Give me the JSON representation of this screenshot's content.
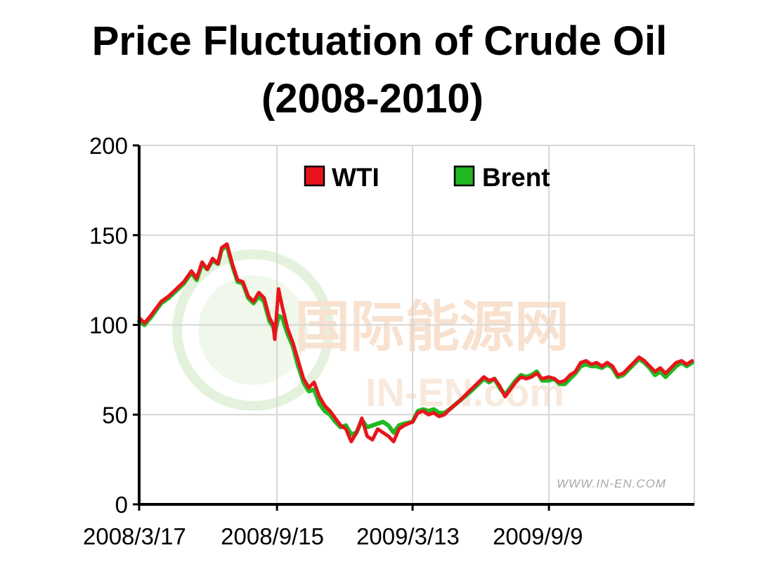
{
  "page": {
    "title_line1": "Price Fluctuation of Crude Oil",
    "title_line2": "(2008-2010)"
  },
  "colors": {
    "wti": "#e8141c",
    "brent": "#22b822",
    "grid": "#d6d6d6",
    "axis": "#000000",
    "watermark": "#f4c9a8",
    "watermark_globe": "#cfe9c2"
  },
  "watermark": {
    "chinese": "国际能源网",
    "latin": "IN-EN.com",
    "url": "WWW.IN-EN.COM"
  },
  "chart_data": {
    "type": "line",
    "title": "",
    "xlabel": "",
    "ylabel": "",
    "ylim": [
      0,
      200
    ],
    "yticks": [
      0,
      50,
      100,
      150,
      200
    ],
    "xlim": [
      "2008-03-17",
      "2010-03-20"
    ],
    "xticks": [
      {
        "date": "2008-03-17",
        "label": "2008/3/17"
      },
      {
        "date": "2008-09-15",
        "label": "2008/9/15"
      },
      {
        "date": "2009-03-13",
        "label": "2009/3/13"
      },
      {
        "date": "2009-09-09",
        "label": "2009/9/9"
      }
    ],
    "grid": true,
    "legend_position": "top-center",
    "series": [
      {
        "name": "WTI",
        "color": "#e8141c",
        "points": [
          [
            "2008-03-17",
            104
          ],
          [
            "2008-03-24",
            101
          ],
          [
            "2008-04-01",
            105
          ],
          [
            "2008-04-15",
            113
          ],
          [
            "2008-04-25",
            116
          ],
          [
            "2008-05-05",
            120
          ],
          [
            "2008-05-15",
            124
          ],
          [
            "2008-05-25",
            130
          ],
          [
            "2008-06-01",
            126
          ],
          [
            "2008-06-08",
            135
          ],
          [
            "2008-06-15",
            131
          ],
          [
            "2008-06-22",
            137
          ],
          [
            "2008-06-29",
            134
          ],
          [
            "2008-07-04",
            143
          ],
          [
            "2008-07-11",
            145
          ],
          [
            "2008-07-18",
            134
          ],
          [
            "2008-07-25",
            125
          ],
          [
            "2008-08-01",
            124
          ],
          [
            "2008-08-08",
            116
          ],
          [
            "2008-08-15",
            113
          ],
          [
            "2008-08-22",
            118
          ],
          [
            "2008-08-29",
            115
          ],
          [
            "2008-09-05",
            104
          ],
          [
            "2008-09-10",
            100
          ],
          [
            "2008-09-12",
            92
          ],
          [
            "2008-09-17",
            120
          ],
          [
            "2008-09-22",
            110
          ],
          [
            "2008-09-29",
            98
          ],
          [
            "2008-10-06",
            90
          ],
          [
            "2008-10-13",
            80
          ],
          [
            "2008-10-20",
            70
          ],
          [
            "2008-10-27",
            65
          ],
          [
            "2008-11-03",
            68
          ],
          [
            "2008-11-10",
            60
          ],
          [
            "2008-11-17",
            55
          ],
          [
            "2008-11-24",
            52
          ],
          [
            "2008-12-01",
            48
          ],
          [
            "2008-12-08",
            44
          ],
          [
            "2008-12-15",
            42
          ],
          [
            "2008-12-22",
            35
          ],
          [
            "2008-12-29",
            40
          ],
          [
            "2009-01-05",
            48
          ],
          [
            "2009-01-12",
            38
          ],
          [
            "2009-01-19",
            36
          ],
          [
            "2009-01-26",
            42
          ],
          [
            "2009-02-02",
            40
          ],
          [
            "2009-02-09",
            38
          ],
          [
            "2009-02-16",
            35
          ],
          [
            "2009-02-23",
            42
          ],
          [
            "2009-03-02",
            44
          ],
          [
            "2009-03-13",
            46
          ],
          [
            "2009-03-20",
            51
          ],
          [
            "2009-03-27",
            52
          ],
          [
            "2009-04-03",
            50
          ],
          [
            "2009-04-10",
            51
          ],
          [
            "2009-04-17",
            49
          ],
          [
            "2009-04-24",
            50
          ],
          [
            "2009-05-01",
            53
          ],
          [
            "2009-05-15",
            58
          ],
          [
            "2009-05-29",
            64
          ],
          [
            "2009-06-08",
            68
          ],
          [
            "2009-06-15",
            71
          ],
          [
            "2009-06-22",
            69
          ],
          [
            "2009-06-29",
            70
          ],
          [
            "2009-07-06",
            66
          ],
          [
            "2009-07-13",
            60
          ],
          [
            "2009-07-20",
            64
          ],
          [
            "2009-07-27",
            68
          ],
          [
            "2009-08-03",
            71
          ],
          [
            "2009-08-10",
            70
          ],
          [
            "2009-08-17",
            71
          ],
          [
            "2009-08-24",
            73
          ],
          [
            "2009-08-31",
            70
          ],
          [
            "2009-09-09",
            71
          ],
          [
            "2009-09-16",
            70
          ],
          [
            "2009-09-23",
            68
          ],
          [
            "2009-09-30",
            69
          ],
          [
            "2009-10-07",
            72
          ],
          [
            "2009-10-14",
            74
          ],
          [
            "2009-10-21",
            79
          ],
          [
            "2009-10-28",
            80
          ],
          [
            "2009-11-04",
            78
          ],
          [
            "2009-11-11",
            79
          ],
          [
            "2009-11-18",
            77
          ],
          [
            "2009-11-25",
            79
          ],
          [
            "2009-12-02",
            77
          ],
          [
            "2009-12-09",
            72
          ],
          [
            "2009-12-16",
            73
          ],
          [
            "2009-12-23",
            76
          ],
          [
            "2009-12-30",
            79
          ],
          [
            "2010-01-06",
            82
          ],
          [
            "2010-01-13",
            80
          ],
          [
            "2010-01-20",
            77
          ],
          [
            "2010-01-27",
            74
          ],
          [
            "2010-02-03",
            76
          ],
          [
            "2010-02-10",
            73
          ],
          [
            "2010-02-17",
            76
          ],
          [
            "2010-02-24",
            79
          ],
          [
            "2010-03-03",
            80
          ],
          [
            "2010-03-10",
            78
          ],
          [
            "2010-03-17",
            80
          ]
        ]
      },
      {
        "name": "Brent",
        "color": "#22b822",
        "points": [
          [
            "2008-03-17",
            102
          ],
          [
            "2008-03-24",
            100
          ],
          [
            "2008-04-01",
            104
          ],
          [
            "2008-04-15",
            112
          ],
          [
            "2008-04-25",
            115
          ],
          [
            "2008-05-05",
            119
          ],
          [
            "2008-05-15",
            123
          ],
          [
            "2008-05-25",
            129
          ],
          [
            "2008-06-01",
            125
          ],
          [
            "2008-06-08",
            134
          ],
          [
            "2008-06-15",
            131
          ],
          [
            "2008-06-22",
            136
          ],
          [
            "2008-06-29",
            134
          ],
          [
            "2008-07-04",
            142
          ],
          [
            "2008-07-11",
            144
          ],
          [
            "2008-07-18",
            133
          ],
          [
            "2008-07-25",
            124
          ],
          [
            "2008-08-01",
            123
          ],
          [
            "2008-08-08",
            115
          ],
          [
            "2008-08-15",
            112
          ],
          [
            "2008-08-22",
            116
          ],
          [
            "2008-08-29",
            113
          ],
          [
            "2008-09-05",
            102
          ],
          [
            "2008-09-10",
            99
          ],
          [
            "2008-09-12",
            95
          ],
          [
            "2008-09-17",
            105
          ],
          [
            "2008-09-22",
            104
          ],
          [
            "2008-09-29",
            95
          ],
          [
            "2008-10-06",
            88
          ],
          [
            "2008-10-13",
            77
          ],
          [
            "2008-10-20",
            68
          ],
          [
            "2008-10-27",
            63
          ],
          [
            "2008-11-03",
            64
          ],
          [
            "2008-11-10",
            56
          ],
          [
            "2008-11-17",
            52
          ],
          [
            "2008-11-24",
            50
          ],
          [
            "2008-12-01",
            46
          ],
          [
            "2008-12-08",
            43
          ],
          [
            "2008-12-15",
            44
          ],
          [
            "2008-12-22",
            39
          ],
          [
            "2008-12-29",
            40
          ],
          [
            "2009-01-05",
            47
          ],
          [
            "2009-01-12",
            43
          ],
          [
            "2009-01-19",
            44
          ],
          [
            "2009-01-26",
            45
          ],
          [
            "2009-02-02",
            46
          ],
          [
            "2009-02-09",
            44
          ],
          [
            "2009-02-16",
            40
          ],
          [
            "2009-02-23",
            44
          ],
          [
            "2009-03-02",
            45
          ],
          [
            "2009-03-13",
            46
          ],
          [
            "2009-03-20",
            52
          ],
          [
            "2009-03-27",
            53
          ],
          [
            "2009-04-03",
            52
          ],
          [
            "2009-04-10",
            53
          ],
          [
            "2009-04-17",
            51
          ],
          [
            "2009-04-24",
            51
          ],
          [
            "2009-05-01",
            53
          ],
          [
            "2009-05-15",
            58
          ],
          [
            "2009-05-29",
            63
          ],
          [
            "2009-06-08",
            67
          ],
          [
            "2009-06-15",
            70
          ],
          [
            "2009-06-22",
            68
          ],
          [
            "2009-06-29",
            70
          ],
          [
            "2009-07-06",
            65
          ],
          [
            "2009-07-13",
            61
          ],
          [
            "2009-07-20",
            65
          ],
          [
            "2009-07-27",
            69
          ],
          [
            "2009-08-03",
            72
          ],
          [
            "2009-08-10",
            71
          ],
          [
            "2009-08-17",
            72
          ],
          [
            "2009-08-24",
            74
          ],
          [
            "2009-08-31",
            69
          ],
          [
            "2009-09-09",
            69
          ],
          [
            "2009-09-16",
            70
          ],
          [
            "2009-09-23",
            67
          ],
          [
            "2009-09-30",
            67
          ],
          [
            "2009-10-07",
            70
          ],
          [
            "2009-10-14",
            73
          ],
          [
            "2009-10-21",
            77
          ],
          [
            "2009-10-28",
            78
          ],
          [
            "2009-11-04",
            77
          ],
          [
            "2009-11-11",
            77
          ],
          [
            "2009-11-18",
            76
          ],
          [
            "2009-11-25",
            78
          ],
          [
            "2009-12-02",
            76
          ],
          [
            "2009-12-09",
            71
          ],
          [
            "2009-12-16",
            72
          ],
          [
            "2009-12-23",
            75
          ],
          [
            "2009-12-30",
            78
          ],
          [
            "2010-01-06",
            81
          ],
          [
            "2010-01-13",
            79
          ],
          [
            "2010-01-20",
            76
          ],
          [
            "2010-01-27",
            72
          ],
          [
            "2010-02-03",
            74
          ],
          [
            "2010-02-10",
            71
          ],
          [
            "2010-02-17",
            74
          ],
          [
            "2010-02-24",
            77
          ],
          [
            "2010-03-03",
            79
          ],
          [
            "2010-03-10",
            77
          ],
          [
            "2010-03-17",
            79
          ]
        ]
      }
    ]
  }
}
